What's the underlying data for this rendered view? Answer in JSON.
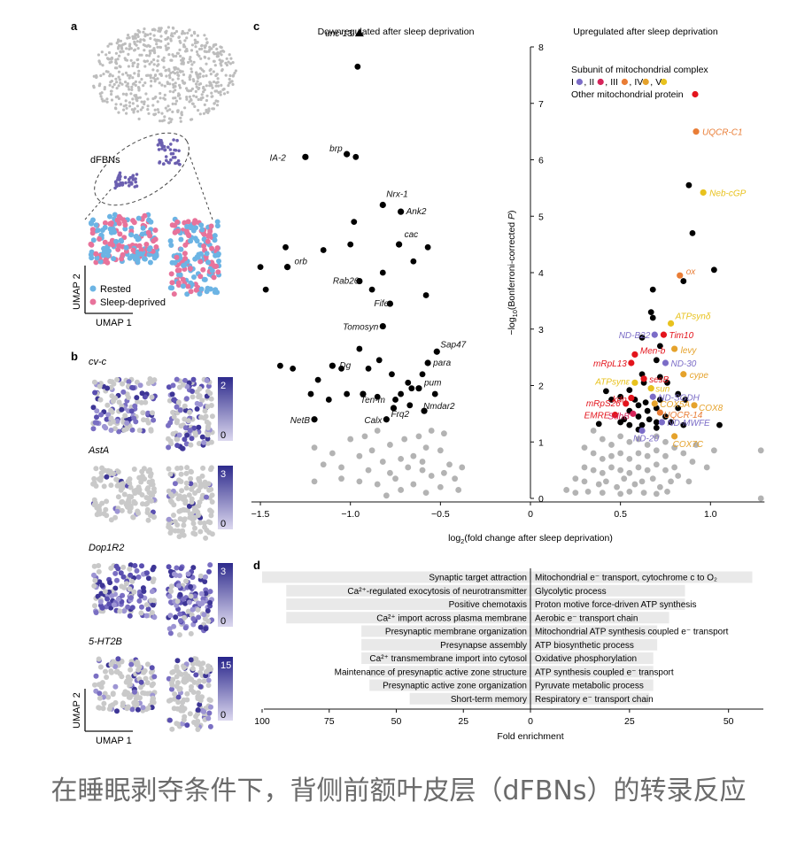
{
  "panels": {
    "a": {
      "letter": "a",
      "cluster_label": "dFBNs",
      "legend": [
        {
          "label": "Rested",
          "color": "#6cb4e4"
        },
        {
          "label": "Sleep-deprived",
          "color": "#e8739b"
        }
      ],
      "axis_x": "UMAP 1",
      "axis_y": "UMAP 2"
    },
    "b": {
      "letter": "b",
      "genes": [
        {
          "name": "cv-c",
          "scale_max": "2",
          "scale_min": "0"
        },
        {
          "name": "AstA",
          "scale_max": "3",
          "scale_min": "0"
        },
        {
          "name": "Dop1R2",
          "scale_max": "3",
          "scale_min": "0"
        },
        {
          "name": "5-HT2B",
          "scale_max": "15",
          "scale_min": "0"
        }
      ],
      "axis_x": "UMAP 1",
      "axis_y": "UMAP 2"
    },
    "c": {
      "letter": "c"
    },
    "d": {
      "letter": "d"
    }
  },
  "chart_data": [
    {
      "type": "scatter",
      "panel": "c",
      "title_left": "Downregulated after sleep deprivation",
      "title_right": "Upregulated after sleep deprivation",
      "xlabel": "log2(fold change after sleep deprivation)",
      "ylabel": "−log10(Bonferroni-corrected P)",
      "xlim": [
        -1.55,
        1.3
      ],
      "ylim": [
        0,
        8
      ],
      "x_ticks": [
        -1.5,
        -1.0,
        -0.5,
        0,
        0.5,
        1.0
      ],
      "x_tick_labels": [
        "−1.5",
        "−1.0",
        "−0.5",
        "0",
        "0.5",
        "1.0"
      ],
      "y_ticks": [
        0,
        1,
        2,
        3,
        4,
        5,
        6,
        7,
        8
      ],
      "y_tick_labels": [
        "0",
        "1",
        "2",
        "3",
        "4",
        "5",
        "6",
        "7",
        "8"
      ],
      "legend": {
        "title": "Subunit of mitochondrial complex",
        "complexes": [
          {
            "label": "I",
            "color": "#7b6cc7"
          },
          {
            "label": "II",
            "color": "#d6245a"
          },
          {
            "label": "III",
            "color": "#e97d36"
          },
          {
            "label": "IV",
            "color": "#e5a22b"
          },
          {
            "label": "V",
            "color": "#e8c21e"
          }
        ],
        "other_label": "Other mitochondrial protein",
        "other_color": "#e3141c"
      },
      "colors": {
        "significant": "#000000",
        "nonsignificant": "#b3b3b3"
      },
      "marker": {
        "label": "unc-13",
        "x": -0.95,
        "y": 8.25
      },
      "labeled_points": [
        {
          "label": "IA-2",
          "x": -1.25,
          "y": 6.05,
          "cat": "sig"
        },
        {
          "label": "brp",
          "x": -1.02,
          "y": 6.1,
          "cat": "sig"
        },
        {
          "label": "Nrx-1",
          "x": -0.82,
          "y": 5.2,
          "cat": "sig"
        },
        {
          "label": "Ank2",
          "x": -0.72,
          "y": 5.08,
          "cat": "sig"
        },
        {
          "label": "cac",
          "x": -0.73,
          "y": 4.5,
          "cat": "sig"
        },
        {
          "label": "orb",
          "x": -1.35,
          "y": 4.1,
          "cat": "sig"
        },
        {
          "label": "Rab26",
          "x": -0.95,
          "y": 3.85,
          "cat": "sig"
        },
        {
          "label": "Fife",
          "x": -0.78,
          "y": 3.45,
          "cat": "sig"
        },
        {
          "label": "Tomosyn",
          "x": -0.82,
          "y": 3.05,
          "cat": "sig"
        },
        {
          "label": "Sap47",
          "x": -0.52,
          "y": 2.6,
          "cat": "sig"
        },
        {
          "label": "para",
          "x": -0.57,
          "y": 2.4,
          "cat": "sig"
        },
        {
          "label": "Dg",
          "x": -1.1,
          "y": 2.35,
          "cat": "sig"
        },
        {
          "label": "pum",
          "x": -0.62,
          "y": 1.95,
          "cat": "sig"
        },
        {
          "label": "Ten-m",
          "x": -0.93,
          "y": 1.85,
          "cat": "sig"
        },
        {
          "label": "Frq2",
          "x": -0.76,
          "y": 1.6,
          "cat": "sig"
        },
        {
          "label": "Nmdar2",
          "x": -0.59,
          "y": 1.55,
          "cat": "sig"
        },
        {
          "label": "NetB",
          "x": -1.2,
          "y": 1.4,
          "cat": "sig"
        },
        {
          "label": "Calx",
          "x": -0.8,
          "y": 1.4,
          "cat": "sig"
        },
        {
          "label": "UQCR-C1",
          "x": 0.92,
          "y": 6.5,
          "cat": "III"
        },
        {
          "label": "Neb-cGP",
          "x": 0.96,
          "y": 5.42,
          "cat": "V"
        },
        {
          "label": "ox",
          "x": 0.83,
          "y": 3.95,
          "cat": "III"
        },
        {
          "label": "ATPsynδ",
          "x": 0.78,
          "y": 3.1,
          "cat": "V"
        },
        {
          "label": "ND-B22",
          "x": 0.69,
          "y": 2.9,
          "cat": "I"
        },
        {
          "label": "Tim10",
          "x": 0.74,
          "y": 2.9,
          "cat": "other"
        },
        {
          "label": "levy",
          "x": 0.8,
          "y": 2.65,
          "cat": "IV"
        },
        {
          "label": "Men-b",
          "x": 0.58,
          "y": 2.55,
          "cat": "other"
        },
        {
          "label": "mRpL13",
          "x": 0.56,
          "y": 2.4,
          "cat": "other"
        },
        {
          "label": "ND-30",
          "x": 0.75,
          "y": 2.4,
          "cat": "I"
        },
        {
          "label": "sesB",
          "x": 0.63,
          "y": 2.12,
          "cat": "other"
        },
        {
          "label": "cype",
          "x": 0.85,
          "y": 2.2,
          "cat": "IV"
        },
        {
          "label": "ATPsynε",
          "x": 0.58,
          "y": 2.05,
          "cat": "V"
        },
        {
          "label": "sun",
          "x": 0.67,
          "y": 1.95,
          "cat": "V"
        },
        {
          "label": "ND-SGDH",
          "x": 0.68,
          "y": 1.8,
          "cat": "I"
        },
        {
          "label": "kdn",
          "x": 0.56,
          "y": 1.78,
          "cat": "other"
        },
        {
          "label": "mRpS26",
          "x": 0.53,
          "y": 1.68,
          "cat": "other"
        },
        {
          "label": "COX5A",
          "x": 0.69,
          "y": 1.68,
          "cat": "IV"
        },
        {
          "label": "COX8",
          "x": 0.91,
          "y": 1.65,
          "cat": "IV"
        },
        {
          "label": "EMRE",
          "x": 0.47,
          "y": 1.48,
          "cat": "other"
        },
        {
          "label": "SdhB",
          "x": 0.57,
          "y": 1.5,
          "cat": "II"
        },
        {
          "label": "UQCR-14",
          "x": 0.72,
          "y": 1.52,
          "cat": "III"
        },
        {
          "label": "ND-MWFE",
          "x": 0.73,
          "y": 1.35,
          "cat": "I"
        },
        {
          "label": "ND-20",
          "x": 0.62,
          "y": 1.2,
          "cat": "I"
        },
        {
          "label": "COX7C",
          "x": 0.8,
          "y": 1.1,
          "cat": "IV"
        }
      ],
      "unlabeled_significant": [
        [
          -0.96,
          7.65
        ],
        [
          -0.97,
          6.05
        ],
        [
          -1.5,
          4.1
        ],
        [
          -1.47,
          3.7
        ],
        [
          -1.36,
          4.45
        ],
        [
          -1.15,
          4.4
        ],
        [
          -1.0,
          4.5
        ],
        [
          -0.98,
          4.9
        ],
        [
          -0.82,
          4.0
        ],
        [
          -0.57,
          4.45
        ],
        [
          -0.65,
          4.2
        ],
        [
          -0.88,
          3.7
        ],
        [
          -0.58,
          3.6
        ],
        [
          -1.39,
          2.35
        ],
        [
          -1.32,
          2.3
        ],
        [
          -1.18,
          2.1
        ],
        [
          -1.05,
          2.3
        ],
        [
          -0.9,
          2.3
        ],
        [
          -0.84,
          2.45
        ],
        [
          -0.95,
          2.65
        ],
        [
          -0.77,
          2.2
        ],
        [
          -0.68,
          2.05
        ],
        [
          -0.66,
          1.95
        ],
        [
          -0.6,
          2.2
        ],
        [
          -1.22,
          1.85
        ],
        [
          -1.12,
          1.75
        ],
        [
          -1.02,
          1.85
        ],
        [
          -0.85,
          1.8
        ],
        [
          -0.75,
          1.75
        ],
        [
          -0.72,
          1.85
        ],
        [
          -0.53,
          1.85
        ],
        [
          -0.67,
          1.65
        ],
        [
          1.02,
          4.05
        ],
        [
          0.88,
          5.55
        ],
        [
          0.9,
          4.7
        ],
        [
          0.85,
          3.85
        ],
        [
          0.68,
          3.7
        ],
        [
          0.67,
          3.3
        ],
        [
          0.68,
          3.2
        ],
        [
          0.62,
          2.85
        ],
        [
          0.72,
          2.7
        ],
        [
          0.7,
          2.45
        ],
        [
          0.62,
          2.2
        ],
        [
          0.72,
          2.15
        ],
        [
          0.63,
          2.05
        ],
        [
          0.76,
          2.05
        ],
        [
          0.67,
          1.95
        ],
        [
          0.55,
          1.92
        ],
        [
          0.82,
          1.85
        ],
        [
          0.42,
          1.9
        ],
        [
          0.45,
          1.75
        ],
        [
          0.5,
          1.8
        ],
        [
          0.58,
          1.75
        ],
        [
          0.64,
          1.7
        ],
        [
          0.72,
          1.75
        ],
        [
          0.86,
          1.75
        ],
        [
          0.6,
          1.65
        ],
        [
          0.65,
          1.55
        ],
        [
          0.7,
          1.6
        ],
        [
          0.82,
          1.6
        ],
        [
          0.55,
          1.55
        ],
        [
          0.6,
          1.45
        ],
        [
          0.75,
          1.45
        ],
        [
          0.7,
          1.35
        ],
        [
          0.78,
          1.35
        ],
        [
          0.52,
          1.4
        ],
        [
          0.66,
          1.4
        ],
        [
          0.62,
          1.3
        ],
        [
          0.55,
          1.3
        ],
        [
          0.5,
          1.35
        ],
        [
          0.38,
          1.32
        ],
        [
          0.85,
          1.3
        ],
        [
          1.05,
          1.3
        ],
        [
          0.6,
          1.22
        ],
        [
          0.7,
          1.25
        ]
      ],
      "nonsignificant": [
        [
          -0.55,
          1.2
        ],
        [
          -0.62,
          1.1
        ],
        [
          -0.7,
          1.05
        ],
        [
          -0.48,
          1.15
        ],
        [
          -0.85,
          1.2
        ],
        [
          -0.92,
          1.1
        ],
        [
          -1.0,
          1.05
        ],
        [
          -0.78,
          0.95
        ],
        [
          -0.58,
          0.9
        ],
        [
          -0.5,
          0.85
        ],
        [
          -0.65,
          0.75
        ],
        [
          -0.72,
          0.7
        ],
        [
          -0.82,
          0.65
        ],
        [
          -0.95,
          0.75
        ],
        [
          -1.1,
          0.8
        ],
        [
          -1.15,
          0.6
        ],
        [
          -1.2,
          0.9
        ],
        [
          -0.9,
          0.5
        ],
        [
          -0.78,
          0.45
        ],
        [
          -0.6,
          0.5
        ],
        [
          -0.55,
          0.4
        ],
        [
          -0.45,
          0.6
        ],
        [
          -0.42,
          0.35
        ],
        [
          -0.5,
          0.2
        ],
        [
          -0.65,
          0.25
        ],
        [
          -0.72,
          0.15
        ],
        [
          -0.85,
          0.25
        ],
        [
          -0.95,
          0.3
        ],
        [
          -1.05,
          0.35
        ],
        [
          -1.2,
          0.3
        ],
        [
          -0.4,
          0.15
        ],
        [
          -0.58,
          0.1
        ],
        [
          -0.8,
          0.05
        ],
        [
          -0.68,
          0.55
        ],
        [
          -0.48,
          0.45
        ],
        [
          -0.88,
          0.85
        ],
        [
          -1.05,
          0.55
        ],
        [
          -0.6,
          0.65
        ],
        [
          -0.38,
          0.55
        ],
        [
          -0.75,
          0.35
        ],
        [
          0.35,
          1.2
        ],
        [
          0.4,
          1.05
        ],
        [
          0.45,
          0.95
        ],
        [
          0.5,
          1.1
        ],
        [
          0.55,
          1.0
        ],
        [
          0.6,
          1.05
        ],
        [
          0.65,
          0.95
        ],
        [
          0.7,
          1.1
        ],
        [
          0.75,
          1.0
        ],
        [
          0.8,
          0.9
        ],
        [
          0.3,
          0.9
        ],
        [
          0.35,
          0.8
        ],
        [
          0.4,
          0.7
        ],
        [
          0.45,
          0.75
        ],
        [
          0.5,
          0.8
        ],
        [
          0.55,
          0.7
        ],
        [
          0.6,
          0.8
        ],
        [
          0.65,
          0.75
        ],
        [
          0.7,
          0.85
        ],
        [
          0.75,
          0.75
        ],
        [
          0.85,
          0.8
        ],
        [
          0.9,
          0.65
        ],
        [
          0.3,
          0.55
        ],
        [
          0.35,
          0.5
        ],
        [
          0.4,
          0.45
        ],
        [
          0.45,
          0.55
        ],
        [
          0.5,
          0.5
        ],
        [
          0.55,
          0.45
        ],
        [
          0.6,
          0.55
        ],
        [
          0.65,
          0.5
        ],
        [
          0.7,
          0.6
        ],
        [
          0.75,
          0.5
        ],
        [
          0.8,
          0.55
        ],
        [
          0.25,
          0.35
        ],
        [
          0.3,
          0.3
        ],
        [
          0.38,
          0.25
        ],
        [
          0.42,
          0.3
        ],
        [
          0.48,
          0.2
        ],
        [
          0.52,
          0.35
        ],
        [
          0.58,
          0.25
        ],
        [
          0.62,
          0.3
        ],
        [
          0.68,
          0.35
        ],
        [
          0.72,
          0.2
        ],
        [
          0.78,
          0.3
        ],
        [
          0.82,
          0.4
        ],
        [
          0.2,
          0.15
        ],
        [
          0.25,
          0.1
        ],
        [
          0.32,
          0.12
        ],
        [
          0.4,
          0.1
        ],
        [
          0.5,
          0.08
        ],
        [
          0.55,
          0.12
        ],
        [
          0.63,
          0.1
        ],
        [
          0.7,
          0.08
        ],
        [
          0.76,
          0.12
        ],
        [
          0.88,
          0.3
        ],
        [
          0.92,
          0.95
        ],
        [
          0.98,
          0.55
        ],
        [
          1.02,
          0.85
        ],
        [
          1.28,
          0.85
        ],
        [
          1.28,
          0.0
        ]
      ]
    },
    {
      "type": "bar",
      "panel": "d",
      "xlabel": "Fold enrichment",
      "left_ticks": [
        100,
        75,
        50,
        25,
        0
      ],
      "right_ticks": [
        0,
        25,
        50
      ],
      "left_axis_max": 100,
      "right_axis_max": 60,
      "bar_color": "#e9e9e9",
      "left_categories": [
        "Synaptic target attraction",
        "Ca²⁺-regulated exocytosis of neurotransmitter",
        "Positive chemotaxis",
        "Ca²⁺ import across plasma membrane",
        "Presynaptic membrane organization",
        "Presynapse assembly",
        "Ca²⁺ transmembrane import into cytosol",
        "Maintenance of presynaptic active zone structure",
        "Presynaptic active zone organization",
        "Short-term memory"
      ],
      "left_values": [
        100,
        91,
        91,
        91,
        63,
        63,
        63,
        60,
        60,
        45
      ],
      "right_categories": [
        "Mitochondrial e⁻ transport, cytochrome c to O₂",
        "Glycolytic process",
        "Proton motive force-driven ATP synthesis",
        "Aerobic e⁻ transport chain",
        "Mitochondrial ATP synthesis coupled e⁻ transport",
        "ATP biosynthetic process",
        "Oxidative phosphorylation",
        "ATP synthesis coupled e⁻ transport",
        "Pyruvate metabolic process",
        "Respiratory e⁻ transport chain"
      ],
      "right_values": [
        56,
        39,
        39,
        35,
        32,
        32,
        31,
        31,
        31,
        30
      ]
    }
  ],
  "caption": "在睡眠剥夺条件下，背侧前额叶皮层（dFBNs）的转录反应"
}
